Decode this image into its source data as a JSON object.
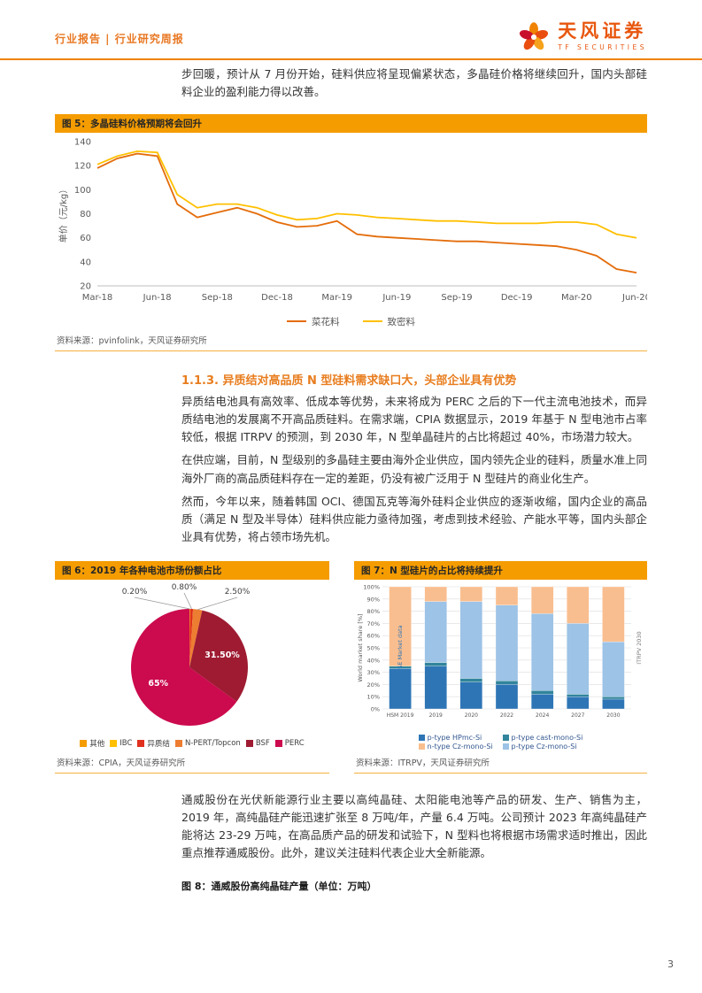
{
  "header": {
    "breadcrumb": "行业报告 | 行业研究周报",
    "brand": "天风证券",
    "brand_sub": "TF SECURITIES"
  },
  "intro": "步回暖，预计从 7 月份开始，硅料供应将呈现偏紧状态，多晶硅价格将继续回升，国内头部硅料企业的盈利能力得以改善。",
  "fig5": {
    "title": "图 5：多晶硅料价格预期将会回升",
    "source": "资料来源：pvinfolink，天风证券研究所"
  },
  "section": {
    "heading": "1.1.3. 异质结对高品质 N 型硅料需求缺口大，头部企业具有优势",
    "para1": "异质结电池具有高效率、低成本等优势，未来将成为 PERC 之后的下一代主流电池技术，而异质结电池的发展离不开高品质硅料。在需求端，CPIA 数据显示，2019 年基于 N 型电池市占率较低，根据 ITRPV 的预测，到 2030 年，N 型单晶硅片的占比将超过 40%，市场潜力较大。",
    "para2": "在供应端，目前，N 型级别的多晶硅主要由海外企业供应，国内领先企业的硅料，质量水准上同海外厂商的高品质硅料存在一定的差距，仍没有被广泛用于 N 型硅片的商业化生产。",
    "para3": "然而，今年以来，随着韩国 OCI、德国瓦克等海外硅料企业供应的逐渐收缩，国内企业的高品质（满足 N 型及半导体）硅料供应能力亟待加强，考虑到技术经验、产能水平等，国内头部企业具有优势，将占领市场先机。"
  },
  "fig6": {
    "title": "图 6：2019 年各种电池市场份额占比",
    "source": "资料来源：CPIA，天风证券研究所"
  },
  "fig7": {
    "title": "图 7：N 型硅片的占比将持续提升",
    "source": "资料来源：ITRPV，天风证券研究所"
  },
  "para4": "通威股份在光伏新能源行业主要以高纯晶硅、太阳能电池等产品的研发、生产、销售为主，2019 年，高纯晶硅产能迅速扩张至 8 万吨/年，产量 6.4 万吨。公司预计 2023 年高纯晶硅产能将达 23-29 万吨，在高品质产品的研发和试验下，N 型料也将根据市场需求适时推出，因此重点推荐通威股份。此外，建议关注硅料代表企业大全新能源。",
  "fig8": {
    "title": "图 8：通威股份高纯晶硅产量（单位：万吨）"
  },
  "page_number": "3",
  "colors": {
    "accent": "#F08300",
    "title_bar": "#F59C00",
    "heading_orange": "#E87D1E"
  },
  "chart_data": [
    {
      "id": "fig5",
      "type": "line",
      "title": "多晶硅料价格预期将会回升",
      "ylabel": "单价（元/kg）",
      "ylim": [
        20,
        140
      ],
      "yticks": [
        20,
        40,
        60,
        80,
        100,
        120,
        140
      ],
      "x": [
        "Mar-18",
        "Apr-18",
        "May-18",
        "Jun-18",
        "Jul-18",
        "Aug-18",
        "Sep-18",
        "Oct-18",
        "Nov-18",
        "Dec-18",
        "Jan-19",
        "Feb-19",
        "Mar-19",
        "Apr-19",
        "May-19",
        "Jun-19",
        "Jul-19",
        "Aug-19",
        "Sep-19",
        "Oct-19",
        "Nov-19",
        "Dec-19",
        "Jan-20",
        "Feb-20",
        "Mar-20",
        "Apr-20",
        "May-20",
        "Jun-20"
      ],
      "xtick_labels": [
        "Mar-18",
        "Jun-18",
        "Sep-18",
        "Dec-18",
        "Mar-19",
        "Jun-19",
        "Sep-19",
        "Dec-19",
        "Mar-20",
        "Jun-20"
      ],
      "xtick_index": [
        0,
        3,
        6,
        9,
        12,
        15,
        18,
        21,
        24,
        27
      ],
      "series": [
        {
          "name": "菜花料",
          "color": "#E46C0A",
          "values": [
            118,
            126,
            130,
            128,
            88,
            77,
            81,
            85,
            80,
            73,
            69,
            70,
            74,
            63,
            61,
            60,
            59,
            58,
            57,
            57,
            56,
            55,
            54,
            53,
            50,
            45,
            34,
            31
          ]
        },
        {
          "name": "致密料",
          "color": "#FFC000",
          "values": [
            121,
            128,
            132,
            131,
            96,
            85,
            88,
            88,
            85,
            79,
            75,
            76,
            80,
            79,
            77,
            76,
            75,
            74,
            74,
            73,
            72,
            72,
            72,
            73,
            73,
            71,
            63,
            60
          ]
        }
      ],
      "legend_position": "bottom",
      "grid": false
    },
    {
      "id": "fig6",
      "type": "pie",
      "title": "2019 年各种电池市场份额占比",
      "slices": [
        {
          "label": "其他",
          "value": 0.2,
          "color": "#F59C00",
          "data_label": "0.20%",
          "label_outside": true
        },
        {
          "label": "IBC",
          "value": 0.0,
          "color": "#FFC000",
          "data_label": null,
          "label_outside": true
        },
        {
          "label": "异质结",
          "value": 0.8,
          "color": "#E0301E",
          "data_label": "0.80%",
          "label_outside": true
        },
        {
          "label": "N-PERT/Topcon",
          "value": 2.5,
          "color": "#ED7D31",
          "data_label": "2.50%",
          "label_outside": true
        },
        {
          "label": "BSF",
          "value": 31.5,
          "color": "#9E1B32",
          "data_label": "31.50%",
          "label_outside": false
        },
        {
          "label": "PERC",
          "value": 65.0,
          "color": "#CC0A4E",
          "data_label": "65%",
          "label_outside": false
        }
      ],
      "legend_position": "bottom"
    },
    {
      "id": "fig7",
      "type": "stacked_bar",
      "title": "N 型硅片的占比将持续提升",
      "ylabel": "World market share [%]",
      "ylim": [
        0,
        100
      ],
      "ytick_step": 10,
      "grid": true,
      "categories": [
        "HSM 2019",
        "2019",
        "2020",
        "2022",
        "2024",
        "2027",
        "2030"
      ],
      "series": [
        {
          "name": "p-type HPmc-Si",
          "color": "#2E75B6",
          "values": [
            33,
            35,
            22,
            20,
            12,
            10,
            8
          ]
        },
        {
          "name": "p-type cast-mono-Si",
          "color": "#31859C",
          "values": [
            2,
            3,
            3,
            3,
            3,
            2,
            2
          ]
        },
        {
          "name": "p-type Cz-mono-Si",
          "color": "#9DC3E6",
          "values": [
            0,
            50,
            63,
            62,
            63,
            58,
            45
          ]
        },
        {
          "name": "n-type Cz-mono-Si",
          "color": "#F9BE8F",
          "values": [
            65,
            12,
            12,
            15,
            22,
            30,
            45
          ]
        }
      ],
      "legend_order": [
        "p-type HPmc-Si",
        "p-type cast-mono-Si",
        "n-type Cz-mono-Si",
        "p-type Cz-mono-Si"
      ],
      "annotations": [
        {
          "text": "ISE Market data",
          "color": "#2E75B6"
        },
        {
          "text": "ITRPV 2030",
          "color": "#808080"
        }
      ]
    }
  ]
}
